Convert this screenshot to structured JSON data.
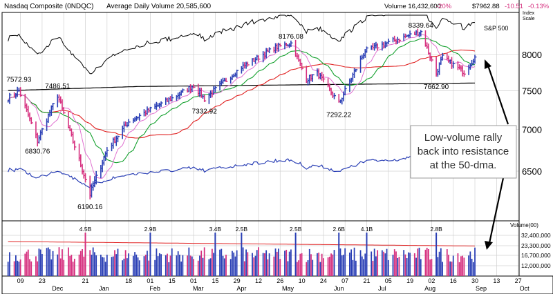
{
  "header": {
    "title": "Nasdaq Composite   (0NDQC)",
    "avg_volume": "Average Daily Volume 20,585,600",
    "volume": "Volume 16,432,600",
    "volume_change": "-20%",
    "price": "$7962.88",
    "change": "-10.51",
    "change_pct": "-0.13%",
    "index_scale_1": "Index",
    "index_scale_2": "Scale"
  },
  "colors": {
    "up": "#2a3fb5",
    "down": "#d6307f",
    "sp500": "#000000",
    "rs_line": "#2a3fb5",
    "ma10": "#e070d0",
    "ma21": "#12a02c",
    "ma50": "#e02020",
    "ma200": "#000000",
    "volume_avg": "#e02020",
    "grid": "#d0d0d0"
  },
  "chart_data": {
    "type": "candlestick",
    "title": "Nasdaq Composite (0NDQC)",
    "price_ticks": [
      "8000",
      "7500",
      "7000",
      "6500"
    ],
    "price_ylim": [
      6050,
      8500
    ],
    "volume_ticks": [
      "32,400,000",
      "23,300,000",
      "16,700,000",
      "12,000,000"
    ],
    "volume_axis_title": "Volume(00)",
    "sp500_label": "S&P 500",
    "price_annotations": [
      {
        "label": "7572.93",
        "date": "2018-11-08",
        "value": 7572.93
      },
      {
        "label": "7486.51",
        "date": "2018-12-03",
        "value": 7486.51
      },
      {
        "label": "6830.76",
        "date": "2018-11-20",
        "value": 6830.76
      },
      {
        "label": "6190.16",
        "date": "2018-12-24",
        "value": 6190.16
      },
      {
        "label": "7332.92",
        "date": "2019-03-08",
        "value": 7332.92
      },
      {
        "label": "8176.08",
        "date": "2019-05-03",
        "value": 8176.08
      },
      {
        "label": "7292.22",
        "date": "2019-06-03",
        "value": 7292.22
      },
      {
        "label": "8339.64",
        "date": "2019-07-26",
        "value": 8339.64
      },
      {
        "label": "7662.90",
        "date": "2019-08-05",
        "value": 7662.9
      }
    ],
    "volume_annotations": [
      {
        "label": "4.5B",
        "date": "2018-12-21"
      },
      {
        "label": "2.9B",
        "date": "2019-02-01"
      },
      {
        "label": "3.4B",
        "date": "2019-03-15"
      },
      {
        "label": "2.5B",
        "date": "2019-04-01"
      },
      {
        "label": "2.5B",
        "date": "2019-05-06"
      },
      {
        "label": "2.6B",
        "date": "2019-06-03"
      },
      {
        "label": "4.1B",
        "date": "2019-06-21"
      },
      {
        "label": "2.8B",
        "date": "2019-08-05"
      }
    ],
    "callout": "Low-volume rally back into resistance at the 50-dma.",
    "x_labels": [
      {
        "label": "09",
        "date": "2018-11-09"
      },
      {
        "label": "23",
        "date": "2018-11-23"
      },
      {
        "label": "Dec",
        "date": "2018-12-03"
      },
      {
        "label": "21",
        "date": "2018-12-21"
      },
      {
        "label": "Jan",
        "date": "2019-01-02"
      },
      {
        "label": "18",
        "date": "2019-01-18"
      },
      {
        "label": "01",
        "date": "2019-02-01"
      },
      {
        "label": "Feb",
        "date": "2019-02-04"
      },
      {
        "label": "15",
        "date": "2019-02-15"
      },
      {
        "label": "01",
        "date": "2019-03-01"
      },
      {
        "label": "Mar",
        "date": "2019-03-04"
      },
      {
        "label": "15",
        "date": "2019-03-15"
      },
      {
        "label": "29",
        "date": "2019-03-29"
      },
      {
        "label": "Apr",
        "date": "2019-04-01"
      },
      {
        "label": "12",
        "date": "2019-04-12"
      },
      {
        "label": "26",
        "date": "2019-04-26"
      },
      {
        "label": "May",
        "date": "2019-05-01"
      },
      {
        "label": "10",
        "date": "2019-05-10"
      },
      {
        "label": "24",
        "date": "2019-05-24"
      },
      {
        "label": "07",
        "date": "2019-06-07"
      },
      {
        "label": "Jun",
        "date": "2019-06-03"
      },
      {
        "label": "21",
        "date": "2019-06-21"
      },
      {
        "label": "05",
        "date": "2019-07-05"
      },
      {
        "label": "Jul",
        "date": "2019-07-01"
      },
      {
        "label": "19",
        "date": "2019-07-19"
      },
      {
        "label": "02",
        "date": "2019-08-02"
      },
      {
        "label": "Aug",
        "date": "2019-08-01"
      },
      {
        "label": "16",
        "date": "2019-08-16"
      },
      {
        "label": "30",
        "date": "2019-08-30"
      },
      {
        "label": "Sep",
        "date": "2019-09-03"
      },
      {
        "label": "13",
        "date": "2019-09-13"
      },
      {
        "label": "27",
        "date": "2019-09-27"
      },
      {
        "label": "Oct",
        "date": "2019-10-01"
      }
    ],
    "key_closes": [
      {
        "date": "2018-11-01",
        "value": 7400
      },
      {
        "date": "2018-11-08",
        "value": 7500
      },
      {
        "date": "2018-11-20",
        "value": 6860
      },
      {
        "date": "2018-12-03",
        "value": 7440
      },
      {
        "date": "2018-12-10",
        "value": 7020
      },
      {
        "date": "2018-12-24",
        "value": 6240
      },
      {
        "date": "2019-01-04",
        "value": 6750
      },
      {
        "date": "2019-01-18",
        "value": 7100
      },
      {
        "date": "2019-02-15",
        "value": 7400
      },
      {
        "date": "2019-03-01",
        "value": 7570
      },
      {
        "date": "2019-03-08",
        "value": 7390
      },
      {
        "date": "2019-04-01",
        "value": 7820
      },
      {
        "date": "2019-04-23",
        "value": 8100
      },
      {
        "date": "2019-05-03",
        "value": 8160
      },
      {
        "date": "2019-05-13",
        "value": 7650
      },
      {
        "date": "2019-05-20",
        "value": 7740
      },
      {
        "date": "2019-06-03",
        "value": 7330
      },
      {
        "date": "2019-06-20",
        "value": 8050
      },
      {
        "date": "2019-07-15",
        "value": 8250
      },
      {
        "date": "2019-07-26",
        "value": 8330
      },
      {
        "date": "2019-08-05",
        "value": 7730
      },
      {
        "date": "2019-08-09",
        "value": 7960
      },
      {
        "date": "2019-08-23",
        "value": 7750
      },
      {
        "date": "2019-08-30",
        "value": 7962.88
      }
    ]
  }
}
